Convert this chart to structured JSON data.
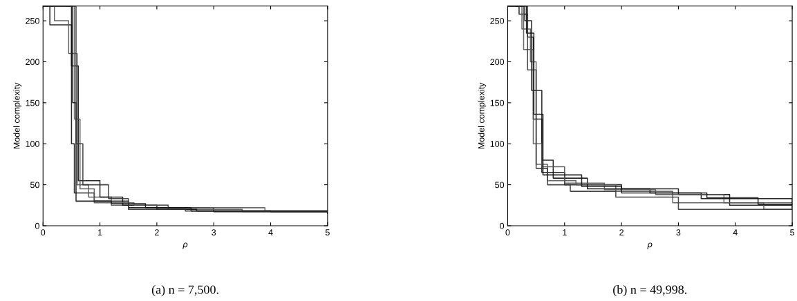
{
  "chart_data": [
    {
      "type": "step",
      "xlabel": "ρ",
      "ylabel": "Model complexity",
      "annotations": [
        "(a) n = 7,500."
      ],
      "xlim": [
        0,
        5
      ],
      "ylim": [
        0,
        268
      ],
      "xticks": [
        0,
        1,
        2,
        3,
        4,
        5
      ],
      "yticks": [
        0,
        50,
        100,
        150,
        200,
        250
      ],
      "grid": false,
      "series": [
        {
          "color": "#111111",
          "x": [
            0,
            0.12,
            0.5,
            0.55,
            0.9,
            1.5,
            3.0,
            5
          ],
          "values": [
            268,
            245,
            100,
            40,
            30,
            22,
            17,
            16
          ]
        },
        {
          "color": "#555555",
          "x": [
            0,
            0.2,
            0.45,
            0.6,
            0.8,
            1.2,
            2.2,
            3.5,
            5
          ],
          "values": [
            268,
            250,
            210,
            50,
            35,
            25,
            20,
            17,
            17
          ]
        },
        {
          "color": "#111111",
          "x": [
            0,
            0.5,
            0.62,
            1.0,
            1.4,
            2.0,
            2.7,
            5
          ],
          "values": [
            268,
            195,
            55,
            35,
            25,
            20,
            18,
            15
          ]
        },
        {
          "color": "#555555",
          "x": [
            0,
            0.55,
            0.65,
            0.9,
            1.6,
            2.2,
            3.9,
            5
          ],
          "values": [
            268,
            130,
            45,
            28,
            25,
            22,
            18,
            18
          ]
        },
        {
          "color": "#111111",
          "x": [
            0,
            0.52,
            0.58,
            1.2,
            1.8,
            2.6,
            4.0,
            5
          ],
          "values": [
            268,
            150,
            30,
            27,
            22,
            18,
            17,
            17
          ]
        },
        {
          "color": "#333333",
          "x": [
            0,
            0.58,
            0.7,
            1.15,
            1.5,
            2.5,
            5
          ],
          "values": [
            268,
            100,
            50,
            33,
            20,
            18,
            15
          ]
        }
      ]
    },
    {
      "type": "step",
      "xlabel": "ρ",
      "ylabel": "Model complexity",
      "annotations": [
        "(b) n = 49,998."
      ],
      "xlim": [
        0,
        5
      ],
      "ylim": [
        0,
        268
      ],
      "xticks": [
        0,
        1,
        2,
        3,
        4,
        5
      ],
      "yticks": [
        0,
        50,
        100,
        150,
        200,
        250
      ],
      "grid": false,
      "series": [
        {
          "color": "#111111",
          "x": [
            0,
            0.2,
            0.35,
            0.45,
            0.6,
            1.0,
            2.0,
            3.0,
            3.9,
            5
          ],
          "values": [
            268,
            258,
            230,
            130,
            65,
            50,
            45,
            38,
            25,
            25
          ]
        },
        {
          "color": "#555555",
          "x": [
            0,
            0.25,
            0.4,
            0.5,
            0.7,
            1.2,
            1.9,
            2.9,
            4.5,
            5
          ],
          "values": [
            268,
            240,
            200,
            75,
            55,
            50,
            42,
            28,
            20,
            20
          ]
        },
        {
          "color": "#111111",
          "x": [
            0,
            0.3,
            0.42,
            0.6,
            0.8,
            1.4,
            2.5,
            3.4,
            5
          ],
          "values": [
            268,
            250,
            165,
            80,
            58,
            45,
            40,
            33,
            22
          ]
        },
        {
          "color": "#555555",
          "x": [
            0,
            0.28,
            0.45,
            0.6,
            1.0,
            1.7,
            2.6,
            3.8,
            5
          ],
          "values": [
            268,
            215,
            100,
            72,
            52,
            44,
            38,
            28,
            23
          ]
        },
        {
          "color": "#111111",
          "x": [
            0,
            0.33,
            0.46,
            0.62,
            1.3,
            2.0,
            3.5,
            4.4,
            5
          ],
          "values": [
            268,
            235,
            136,
            62,
            48,
            40,
            34,
            26,
            26
          ]
        },
        {
          "color": "#333333",
          "x": [
            0,
            0.35,
            0.5,
            0.7,
            1.1,
            1.9,
            3.0,
            4.3,
            5
          ],
          "values": [
            268,
            190,
            70,
            50,
            42,
            35,
            20,
            20,
            20
          ]
        }
      ]
    }
  ]
}
